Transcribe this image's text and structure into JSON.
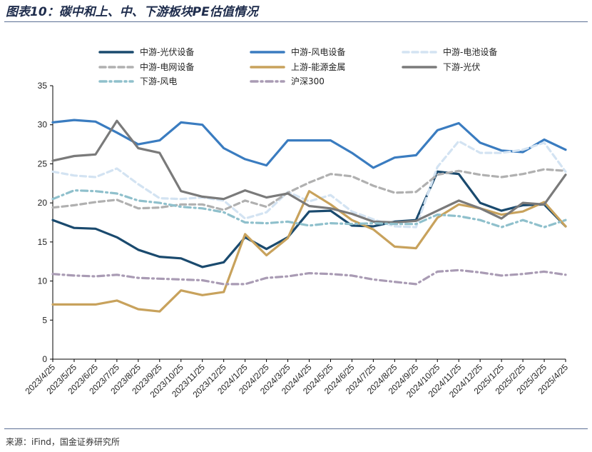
{
  "figure": {
    "title": "图表10：碳中和上、中、下游板块PE估值情况",
    "source": "来源：iFind，国金证券研究所"
  },
  "chart_data": {
    "type": "line",
    "title": "",
    "xlabel": "",
    "ylabel": "",
    "ylim": [
      0,
      35
    ],
    "yticks": [
      0,
      5,
      10,
      15,
      20,
      25,
      30,
      35
    ],
    "grid": false,
    "legend_position": "top",
    "x_tick_labels": [
      "2023/4/25",
      "2023/5/25",
      "2023/6/25",
      "2023/7/25",
      "2023/8/25",
      "2023/9/25",
      "2023/10/25",
      "2023/11/25",
      "2023/12/25",
      "2024/1/25",
      "2024/2/25",
      "2024/3/25",
      "2024/4/25",
      "2024/5/25",
      "2024/6/25",
      "2024/7/25",
      "2024/8/25",
      "2024/9/25",
      "2024/10/25",
      "2024/11/25",
      "2024/12/25",
      "2025/1/25",
      "2025/2/25",
      "2025/3/25",
      "2025/4/25"
    ],
    "series": [
      {
        "name": "中游-光伏设备",
        "color": "#1a4a6e",
        "dash": "solid",
        "width": 3.2,
        "values": [
          17.8,
          16.8,
          16.7,
          15.6,
          14.0,
          13.1,
          12.9,
          11.8,
          12.4,
          15.6,
          14.1,
          15.6,
          18.9,
          19.0,
          17.1,
          17.0,
          17.6,
          17.8,
          24.0,
          23.7,
          20.0,
          19.0,
          19.7,
          19.8,
          17.0
        ]
      },
      {
        "name": "中游-风电设备",
        "color": "#3a7cc0",
        "dash": "solid",
        "width": 3.2,
        "values": [
          30.3,
          30.6,
          30.4,
          29.0,
          27.5,
          28.0,
          30.3,
          30.0,
          27.0,
          25.6,
          24.8,
          28.0,
          28.0,
          28.0,
          26.4,
          24.5,
          25.8,
          26.1,
          29.3,
          30.2,
          27.7,
          26.7,
          26.5,
          28.1,
          26.8
        ]
      },
      {
        "name": "中游-电池设备",
        "color": "#d3e3f2",
        "dash": "dash",
        "width": 3.2,
        "values": [
          24.0,
          23.5,
          23.3,
          24.4,
          22.4,
          20.6,
          20.5,
          20.7,
          20.3,
          18.0,
          18.8,
          21.4,
          20.2,
          21.0,
          18.9,
          17.9,
          17.0,
          16.9,
          24.6,
          27.9,
          26.4,
          26.4,
          26.8,
          27.7,
          24.0
        ]
      },
      {
        "name": "中游-电网设备",
        "color": "#b0b0b0",
        "dash": "dash",
        "width": 3.2,
        "values": [
          19.4,
          19.7,
          20.1,
          20.4,
          19.3,
          19.4,
          19.8,
          19.8,
          19.1,
          20.3,
          19.5,
          21.3,
          22.6,
          23.7,
          23.4,
          22.2,
          21.3,
          21.4,
          23.6,
          24.1,
          23.6,
          23.3,
          23.7,
          24.3,
          24.1
        ]
      },
      {
        "name": "上游-能源金属",
        "color": "#c8a25c",
        "dash": "solid",
        "width": 3.2,
        "values": [
          7.0,
          7.0,
          7.0,
          7.5,
          6.4,
          6.1,
          8.8,
          8.2,
          8.6,
          16.0,
          13.3,
          15.5,
          21.5,
          19.8,
          17.8,
          16.6,
          14.4,
          14.2,
          18.1,
          19.8,
          19.3,
          18.5,
          18.9,
          20.1,
          17.0
        ]
      },
      {
        "name": "下游-光伏",
        "color": "#7a7a7a",
        "dash": "solid",
        "width": 3.2,
        "values": [
          25.4,
          26.0,
          26.2,
          30.5,
          27.0,
          26.4,
          21.5,
          20.8,
          20.5,
          21.6,
          20.7,
          21.2,
          19.6,
          19.3,
          18.6,
          17.6,
          17.5,
          17.7,
          19.0,
          20.3,
          19.3,
          18.0,
          20.0,
          19.8,
          23.6
        ]
      },
      {
        "name": "下游-风电",
        "color": "#8fc0cc",
        "dash": "dashdot",
        "width": 3.2,
        "values": [
          20.5,
          21.6,
          21.5,
          21.2,
          20.3,
          20.0,
          19.5,
          19.3,
          18.8,
          17.5,
          17.4,
          17.6,
          17.1,
          17.4,
          17.3,
          17.4,
          17.3,
          17.3,
          18.5,
          18.3,
          17.8,
          16.9,
          17.8,
          16.9,
          17.8
        ]
      },
      {
        "name": "沪深300",
        "color": "#a99bb4",
        "dash": "dashdot",
        "width": 3.2,
        "values": [
          10.9,
          10.7,
          10.6,
          10.8,
          10.4,
          10.3,
          10.2,
          10.1,
          9.6,
          9.6,
          10.4,
          10.6,
          11.0,
          10.9,
          10.7,
          10.2,
          9.9,
          9.6,
          11.2,
          11.4,
          11.1,
          10.7,
          10.9,
          11.2,
          10.8
        ]
      }
    ]
  }
}
